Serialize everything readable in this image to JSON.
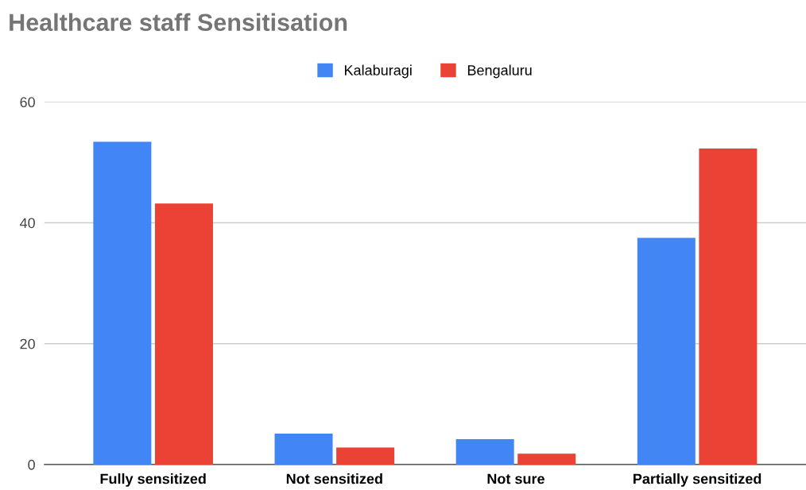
{
  "chart_data": {
    "type": "bar",
    "title": "Healthcare staff Sensitisation",
    "categories": [
      "Fully sensitized",
      "Not sensitized",
      "Not sure",
      "Partially sensitized"
    ],
    "series": [
      {
        "name": "Kalaburagi",
        "color": "#4285f4",
        "values": [
          53.4,
          5.1,
          4.2,
          37.5
        ]
      },
      {
        "name": "Bengaluru",
        "color": "#ea4335",
        "values": [
          43.2,
          2.8,
          1.8,
          52.3
        ]
      }
    ],
    "ylim": [
      0,
      60
    ],
    "yticks": [
      0,
      20,
      40,
      60
    ],
    "grid": "y",
    "legend": "top"
  }
}
